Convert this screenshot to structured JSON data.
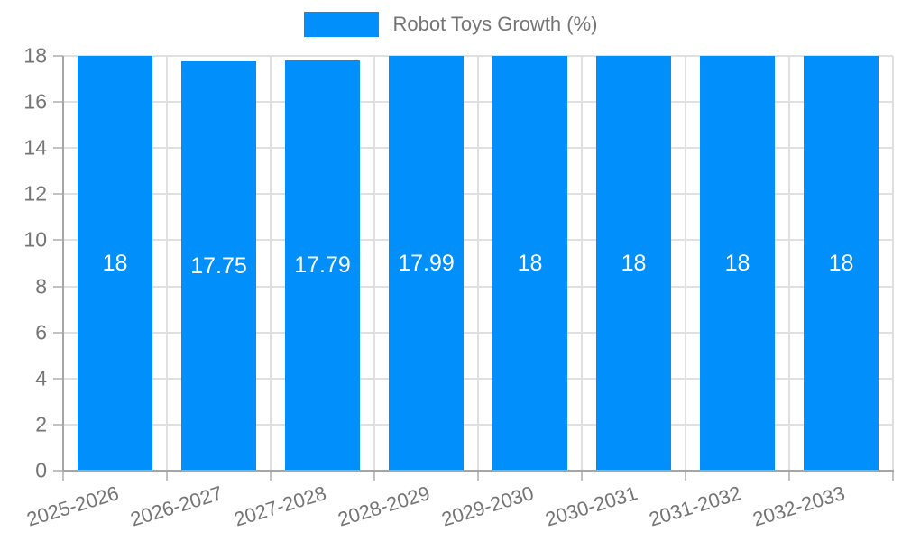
{
  "legend": {
    "label": "Robot Toys Growth (%)"
  },
  "colors": {
    "bar": "#008FFB",
    "bar_label": "#ffffff",
    "axis_text": "#757575",
    "gridline": "#e0e0e0",
    "axis_line": "#a6a6a6",
    "tick": "#c2c2c2",
    "background": "#ffffff"
  },
  "chart_data": {
    "type": "bar",
    "title": "Robot Toys Growth (%)",
    "categories": [
      "2025-2026",
      "2026-2027",
      "2027-2028",
      "2028-2029",
      "2029-2030",
      "2030-2031",
      "2031-2032",
      "2032-2033"
    ],
    "values": [
      18,
      17.75,
      17.79,
      17.99,
      18,
      18,
      18,
      18
    ],
    "value_labels": [
      "18",
      "17.75",
      "17.79",
      "17.99",
      "18",
      "18",
      "18",
      "18"
    ],
    "xlabel": "",
    "ylabel": "",
    "ylim": [
      0,
      18
    ],
    "yticks": [
      0,
      2,
      4,
      6,
      8,
      10,
      12,
      14,
      16,
      18
    ],
    "grid": true,
    "legend_position": "top-center",
    "bar_label_position": "center"
  }
}
